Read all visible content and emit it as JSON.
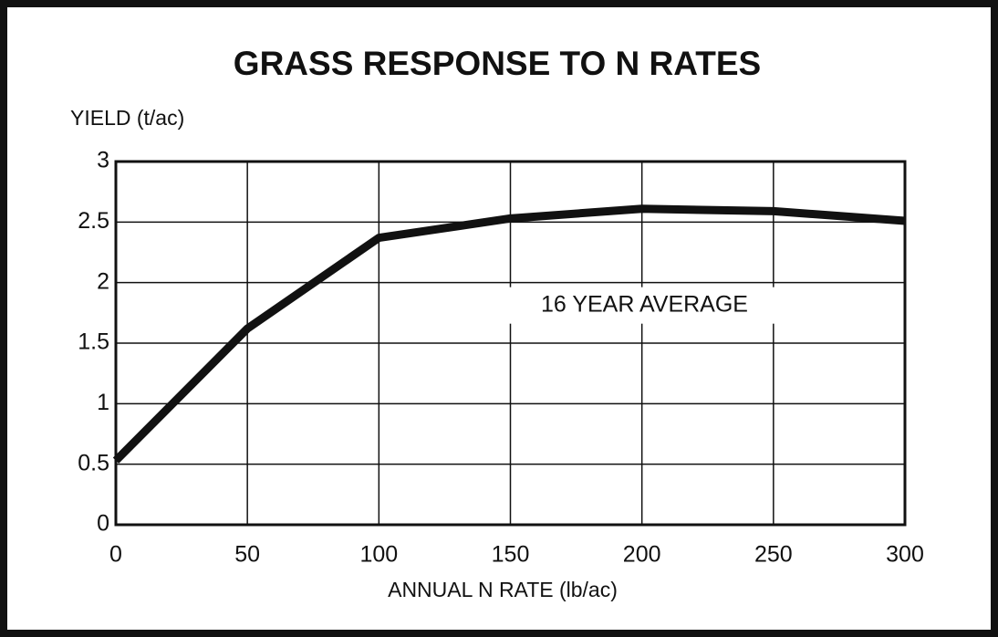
{
  "chart_data": {
    "type": "line",
    "title": "GRASS RESPONSE TO N RATES",
    "y_label": "YIELD (t/ac)",
    "x_label": "ANNUAL N RATE (lb/ac)",
    "annotation": "16 YEAR AVERAGE",
    "x": [
      0,
      50,
      100,
      150,
      200,
      250,
      300
    ],
    "series": [
      {
        "name": "16 YEAR AVERAGE",
        "color": "#111111",
        "values": [
          0.53,
          1.62,
          2.37,
          2.53,
          2.61,
          2.59,
          2.51
        ]
      }
    ],
    "xlim": [
      0,
      300
    ],
    "xticks": [
      0,
      50,
      100,
      150,
      200,
      250,
      300
    ],
    "ylim": [
      0,
      3
    ],
    "yticks": [
      0,
      0.5,
      1,
      1.5,
      2,
      2.5,
      3
    ],
    "grid": true
  }
}
